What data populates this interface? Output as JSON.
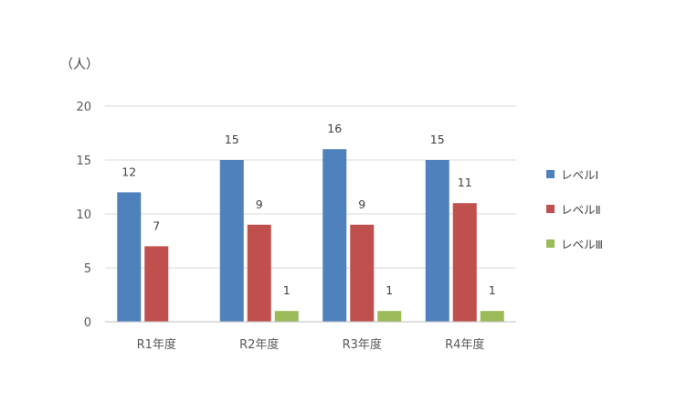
{
  "chart_data": {
    "type": "bar",
    "unit_label": "（人）",
    "categories": [
      "R1年度",
      "R2年度",
      "R3年度",
      "R4年度"
    ],
    "series": [
      {
        "name": "レベルⅠ",
        "color": "#4f81bd",
        "values": [
          12,
          15,
          16,
          15
        ],
        "labels": [
          "12",
          "15",
          "16",
          "15"
        ]
      },
      {
        "name": "レベルⅡ",
        "color": "#c0504d",
        "values": [
          7,
          9,
          9,
          11
        ],
        "labels": [
          "7",
          "9",
          "9",
          "11"
        ]
      },
      {
        "name": "レベルⅢ",
        "color": "#9bbb59",
        "values": [
          0,
          1,
          1,
          1
        ],
        "labels": [
          "",
          "1",
          "1",
          "1"
        ]
      }
    ],
    "ylim": [
      0,
      20
    ],
    "yticks": [
      0,
      5,
      10,
      15,
      20
    ],
    "grid": true,
    "legend": "right"
  }
}
